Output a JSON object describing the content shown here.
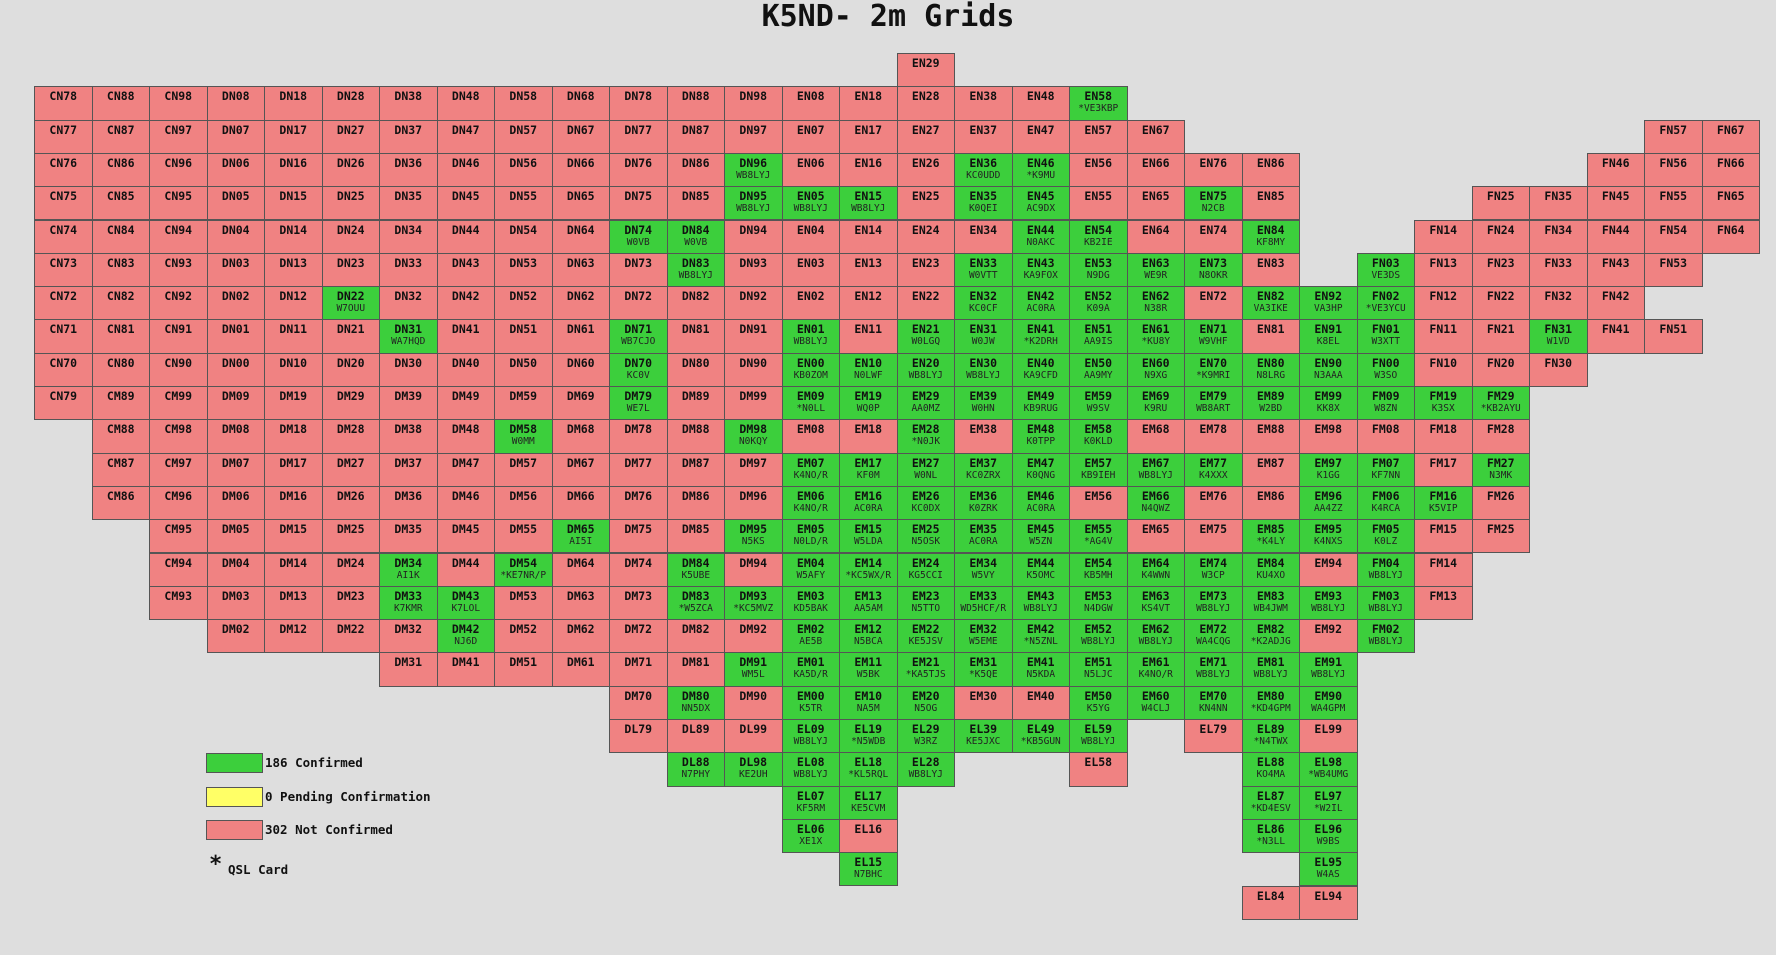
{
  "title": "K5ND- 2m Grids",
  "legend": {
    "items": [
      {
        "color": "#3ccf3c",
        "label": "186 Confirmed"
      },
      {
        "color": "#ffff66",
        "label": "0 Pending Confirmation"
      },
      {
        "color": "#f08282",
        "label": "302 Not Confirmed"
      }
    ],
    "qsl_note": {
      "symbol": "*",
      "label": "QSL Card"
    }
  },
  "rows": [
    [
      "EN29"
    ],
    [
      "CN78",
      "CN88",
      "CN98",
      "DN08",
      "DN18",
      "DN28",
      "DN38",
      "DN48",
      "DN58",
      "DN68",
      "DN78",
      "DN88",
      "DN98",
      "EN08",
      "EN18",
      "EN28",
      "EN38",
      "EN48",
      [
        "EN58",
        "*VE3KBP"
      ]
    ],
    [
      "CN77",
      "CN87",
      "CN97",
      "DN07",
      "DN17",
      "DN27",
      "DN37",
      "DN47",
      "DN57",
      "DN67",
      "DN77",
      "DN87",
      "DN97",
      "EN07",
      "EN17",
      "EN27",
      "EN37",
      "EN47",
      "EN57",
      "EN67",
      "FN57",
      "FN67"
    ],
    [
      "CN76",
      "CN86",
      "CN96",
      "DN06",
      "DN16",
      "DN26",
      "DN36",
      "DN46",
      "DN56",
      "DN66",
      "DN76",
      "DN86",
      [
        "DN96",
        "WB8LYJ"
      ],
      "EN06",
      "EN16",
      "EN26",
      [
        "EN36",
        "KC0UDD"
      ],
      [
        "EN46",
        "*K9MU"
      ],
      "EN56",
      "EN66",
      "EN76",
      "EN86",
      "FN46",
      "FN56",
      "FN66"
    ],
    [
      "CN75",
      "CN85",
      "CN95",
      "DN05",
      "DN15",
      "DN25",
      "DN35",
      "DN45",
      "DN55",
      "DN65",
      "DN75",
      "DN85",
      [
        "DN95",
        "WB8LYJ"
      ],
      [
        "EN05",
        "WB8LYJ"
      ],
      [
        "EN15",
        "WB8LYJ"
      ],
      "EN25",
      [
        "EN35",
        "K0QEI"
      ],
      [
        "EN45",
        "AC9DX"
      ],
      "EN55",
      "EN65",
      [
        "EN75",
        "N2CB"
      ],
      "EN85",
      "FN25",
      "FN35",
      "FN45",
      "FN55",
      "FN65"
    ],
    [
      "CN74",
      "CN84",
      "CN94",
      "DN04",
      "DN14",
      "DN24",
      "DN34",
      "DN44",
      "DN54",
      "DN64",
      [
        "DN74",
        "W0VB"
      ],
      [
        "DN84",
        "W0VB"
      ],
      "DN94",
      "EN04",
      "EN14",
      "EN24",
      "EN34",
      [
        "EN44",
        "N0AKC"
      ],
      [
        "EN54",
        "KB2IE"
      ],
      "EN64",
      "EN74",
      [
        "EN84",
        "KF8MY"
      ],
      "FN14",
      "FN24",
      "FN34",
      "FN44",
      "FN54",
      "FN64"
    ],
    [
      "CN73",
      "CN83",
      "CN93",
      "DN03",
      "DN13",
      "DN23",
      "DN33",
      "DN43",
      "DN53",
      "DN63",
      "DN73",
      [
        "DN83",
        "WB8LYJ"
      ],
      "DN93",
      "EN03",
      "EN13",
      "EN23",
      [
        "EN33",
        "W0VTT"
      ],
      [
        "EN43",
        "KA9FOX"
      ],
      [
        "EN53",
        "N9DG"
      ],
      [
        "EN63",
        "WE9R"
      ],
      [
        "EN73",
        "N8OKR"
      ],
      "EN83",
      [
        "FN03",
        "VE3DS"
      ],
      "FN13",
      "FN23",
      "FN33",
      "FN43",
      "FN53"
    ],
    [
      "CN72",
      "CN82",
      "CN92",
      "DN02",
      "DN12",
      [
        "DN22",
        "W7OUU"
      ],
      "DN32",
      "DN42",
      "DN52",
      "DN62",
      "DN72",
      "DN82",
      "DN92",
      "EN02",
      "EN12",
      "EN22",
      [
        "EN32",
        "KC0CF"
      ],
      [
        "EN42",
        "AC0RA"
      ],
      [
        "EN52",
        "K09A"
      ],
      [
        "EN62",
        "N38R"
      ],
      "EN72",
      [
        "EN82",
        "VA3IKE"
      ],
      [
        "EN92",
        "VA3HP"
      ],
      [
        "FN02",
        "*VE3YCU"
      ],
      "FN12",
      "FN22",
      "FN32",
      "FN42"
    ],
    [
      "CN71",
      "CN81",
      "CN91",
      "DN01",
      "DN11",
      "DN21",
      [
        "DN31",
        "WA7HQD"
      ],
      "DN41",
      "DN51",
      "DN61",
      [
        "DN71",
        "WB7CJO"
      ],
      "DN81",
      "DN91",
      [
        "EN01",
        "WB8LYJ"
      ],
      "EN11",
      [
        "EN21",
        "W0LGQ"
      ],
      [
        "EN31",
        "W0JW"
      ],
      [
        "EN41",
        "*K2DRH"
      ],
      [
        "EN51",
        "AA9IS"
      ],
      [
        "EN61",
        "*KU8Y"
      ],
      [
        "EN71",
        "W9VHF"
      ],
      "EN81",
      [
        "EN91",
        "K8EL"
      ],
      [
        "FN01",
        "W3XTT"
      ],
      "FN11",
      "FN21",
      [
        "FN31",
        "W1VD"
      ],
      "FN41",
      "FN51"
    ],
    [
      "CN70",
      "CN80",
      "CN90",
      "DN00",
      "DN10",
      "DN20",
      "DN30",
      "DN40",
      "DN50",
      "DN60",
      [
        "DN70",
        "KC0V"
      ],
      "DN80",
      "DN90",
      [
        "EN00",
        "KB0ZOM"
      ],
      [
        "EN10",
        "N0LWF"
      ],
      [
        "EN20",
        "WB8LYJ"
      ],
      [
        "EN30",
        "WB8LYJ"
      ],
      [
        "EN40",
        "KA9CFD"
      ],
      [
        "EN50",
        "AA9MY"
      ],
      [
        "EN60",
        "N9XG"
      ],
      [
        "EN70",
        "*K9MRI"
      ],
      [
        "EN80",
        "N8LRG"
      ],
      [
        "EN90",
        "N3AAA"
      ],
      [
        "FN00",
        "W3SO"
      ],
      "FN10",
      "FN20",
      "FN30"
    ],
    [
      "CN79",
      "CM89",
      "CM99",
      "DM09",
      "DM19",
      "DM29",
      "DM39",
      "DM49",
      "DM59",
      "DM69",
      [
        "DM79",
        "WE7L"
      ],
      "DM89",
      "DM99",
      [
        "EM09",
        "*N0LL"
      ],
      [
        "EM19",
        "WQ0P"
      ],
      [
        "EM29",
        "AA0MZ"
      ],
      [
        "EM39",
        "W0HN"
      ],
      [
        "EM49",
        "KB9RUG"
      ],
      [
        "EM59",
        "W9SV"
      ],
      [
        "EM69",
        "K9RU"
      ],
      [
        "EM79",
        "WB8ART"
      ],
      [
        "EM89",
        "W2BD"
      ],
      [
        "EM99",
        "KK8X"
      ],
      [
        "FM09",
        "W8ZN"
      ],
      [
        "FM19",
        "K3SX"
      ],
      [
        "FM29",
        "*KB2AYU"
      ]
    ],
    [
      "CM88",
      "CM98",
      "DM08",
      "DM18",
      "DM28",
      "DM38",
      "DM48",
      [
        "DM58",
        "W0MM"
      ],
      "DM68",
      "DM78",
      "DM88",
      [
        "DM98",
        "N0KQY"
      ],
      "EM08",
      "EM18",
      [
        "EM28",
        "*N0JK"
      ],
      "EM38",
      [
        "EM48",
        "K0TPP"
      ],
      [
        "EM58",
        "K0KLD"
      ],
      "EM68",
      "EM78",
      "EM88",
      "EM98",
      "FM08",
      "FM18",
      "FM28"
    ],
    [
      "CM87",
      "CM97",
      "DM07",
      "DM17",
      "DM27",
      "DM37",
      "DM47",
      "DM57",
      "DM67",
      "DM77",
      "DM87",
      "DM97",
      [
        "EM07",
        "K4NO/R"
      ],
      [
        "EM17",
        "KF0M"
      ],
      [
        "EM27",
        "W0NL"
      ],
      [
        "EM37",
        "KC0ZRX"
      ],
      [
        "EM47",
        "K0QNG"
      ],
      [
        "EM57",
        "KB9IEH"
      ],
      [
        "EM67",
        "WB8LYJ"
      ],
      [
        "EM77",
        "K4XXX"
      ],
      "EM87",
      [
        "EM97",
        "K1GG"
      ],
      [
        "FM07",
        "KF7NN"
      ],
      "FM17",
      [
        "FM27",
        "N3MK"
      ]
    ],
    [
      "CM86",
      "CM96",
      "DM06",
      "DM16",
      "DM26",
      "DM36",
      "DM46",
      "DM56",
      "DM66",
      "DM76",
      "DM86",
      "DM96",
      [
        "EM06",
        "K4NO/R"
      ],
      [
        "EM16",
        "AC0RA"
      ],
      [
        "EM26",
        "KC0DX"
      ],
      [
        "EM36",
        "K0ZRK"
      ],
      [
        "EM46",
        "AC0RA"
      ],
      "EM56",
      [
        "EM66",
        "N4QWZ"
      ],
      "EM76",
      "EM86",
      [
        "EM96",
        "AA4ZZ"
      ],
      [
        "FM06",
        "K4RCA"
      ],
      [
        "FM16",
        "K5VIP"
      ],
      "FM26"
    ],
    [
      "CM95",
      "DM05",
      "DM15",
      "DM25",
      "DM35",
      "DM45",
      "DM55",
      [
        "DM65",
        "AI5I"
      ],
      "DM75",
      "DM85",
      [
        "DM95",
        "N5KS"
      ],
      [
        "EM05",
        "N0LD/R"
      ],
      [
        "EM15",
        "W5LDA"
      ],
      [
        "EM25",
        "N5OSK"
      ],
      [
        "EM35",
        "AC0RA"
      ],
      [
        "EM45",
        "W5ZN"
      ],
      [
        "EM55",
        "*AG4V"
      ],
      "EM65",
      "EM75",
      [
        "EM85",
        "*K4LY"
      ],
      [
        "EM95",
        "K4NXS"
      ],
      [
        "FM05",
        "K0LZ"
      ],
      "FM15",
      "FM25"
    ],
    [
      "CM94",
      "DM04",
      "DM14",
      "DM24",
      [
        "DM34",
        "AI1K"
      ],
      "DM44",
      [
        "DM54",
        "*KE7NR/P"
      ],
      "DM64",
      "DM74",
      [
        "DM84",
        "K5UBE"
      ],
      "DM94",
      [
        "EM04",
        "W5AFY"
      ],
      [
        "EM14",
        "*KC5WX/R"
      ],
      [
        "EM24",
        "KG5CCI"
      ],
      [
        "EM34",
        "W5VY"
      ],
      [
        "EM44",
        "K5OMC"
      ],
      [
        "EM54",
        "KB5MH"
      ],
      [
        "EM64",
        "K4WWN"
      ],
      [
        "EM74",
        "W3CP"
      ],
      [
        "EM84",
        "KU4XO"
      ],
      "EM94",
      [
        "FM04",
        "WB8LYJ"
      ],
      "FM14"
    ],
    [
      "CM93",
      "DM03",
      "DM13",
      "DM23",
      [
        "DM33",
        "K7KMR"
      ],
      [
        "DM43",
        "K7LOL"
      ],
      "DM53",
      "DM63",
      "DM73",
      [
        "DM83",
        "*W5ZCA"
      ],
      [
        "DM93",
        "*KC5MVZ"
      ],
      [
        "EM03",
        "KD5BAK"
      ],
      [
        "EM13",
        "AA5AM"
      ],
      [
        "EM23",
        "N5TTO"
      ],
      [
        "EM33",
        "WD5HCF/R"
      ],
      [
        "EM43",
        "WB8LYJ"
      ],
      [
        "EM53",
        "N4DGW"
      ],
      [
        "EM63",
        "KS4VT"
      ],
      [
        "EM73",
        "WB8LYJ"
      ],
      [
        "EM83",
        "WB4JWM"
      ],
      [
        "EM93",
        "WB8LYJ"
      ],
      [
        "FM03",
        "WB8LYJ"
      ],
      "FM13"
    ],
    [
      "DM02",
      "DM12",
      "DM22",
      "DM32",
      [
        "DM42",
        "NJ6D"
      ],
      "DM52",
      "DM62",
      "DM72",
      "DM82",
      "DM92",
      [
        "EM02",
        "AE5B"
      ],
      [
        "EM12",
        "N5BCA"
      ],
      [
        "EM22",
        "KE5JSV"
      ],
      [
        "EM32",
        "W5EME"
      ],
      [
        "EM42",
        "*N5ZNL"
      ],
      [
        "EM52",
        "WB8LYJ"
      ],
      [
        "EM62",
        "WB8LYJ"
      ],
      [
        "EM72",
        "WA4CQG"
      ],
      [
        "EM82",
        "*K2ADJG"
      ],
      "EM92",
      [
        "FM02",
        "WB8LYJ"
      ]
    ],
    [
      "DM31",
      "DM41",
      "DM51",
      "DM61",
      "DM71",
      "DM81",
      [
        "DM91",
        "WM5L"
      ],
      [
        "EM01",
        "KA5D/R"
      ],
      [
        "EM11",
        "W5BK"
      ],
      [
        "EM21",
        "*KA5TJS"
      ],
      [
        "EM31",
        "*K5QE"
      ],
      [
        "EM41",
        "N5KDA"
      ],
      [
        "EM51",
        "N5LJC"
      ],
      [
        "EM61",
        "K4NO/R"
      ],
      [
        "EM71",
        "WB8LYJ"
      ],
      [
        "EM81",
        "WB8LYJ"
      ],
      [
        "EM91",
        "WB8LYJ"
      ]
    ],
    [
      "DM70",
      [
        "DM80",
        "NN5DX"
      ],
      "DM90",
      [
        "EM00",
        "K5TR"
      ],
      [
        "EM10",
        "NA5M"
      ],
      [
        "EM20",
        "N5OG"
      ],
      "EM30",
      "EM40",
      [
        "EM50",
        "K5YG"
      ],
      [
        "EM60",
        "W4CLJ"
      ],
      [
        "EM70",
        "KN4NN"
      ],
      [
        "EM80",
        "*KD4GPM"
      ],
      [
        "EM90",
        "WA4GPM"
      ]
    ],
    [
      "DL79",
      "DL89",
      "DL99",
      [
        "EL09",
        "WB8LYJ"
      ],
      [
        "EL19",
        "*N5WDB"
      ],
      [
        "EL29",
        "W3RZ"
      ],
      [
        "EL39",
        "KE5JXC"
      ],
      [
        "EL49",
        "*KB5GUN"
      ],
      [
        "EL59",
        "WB8LYJ"
      ],
      "EL79",
      [
        "EL89",
        "*N4TWX"
      ],
      "EL99"
    ],
    [
      [
        "DL88",
        "N7PHY"
      ],
      [
        "DL98",
        "KE2UH"
      ],
      [
        "EL08",
        "WB8LYJ"
      ],
      [
        "EL18",
        "*KL5RQL"
      ],
      [
        "EL28",
        "WB8LYJ"
      ],
      "EL58",
      [
        "EL88",
        "KO4MA"
      ],
      [
        "EL98",
        "*WB4UMG"
      ]
    ],
    [
      [
        "EL07",
        "KF5RM"
      ],
      [
        "EL17",
        "KE5CVM"
      ],
      [
        "EL87",
        "*KD4ESV"
      ],
      [
        "EL97",
        "*W2IL"
      ]
    ],
    [
      [
        "EL06",
        "XE1X"
      ],
      "EL16",
      [
        "EL86",
        "*N3LL"
      ],
      [
        "EL96",
        "W9BS"
      ]
    ],
    [
      [
        "EL15",
        "N7BHC"
      ],
      [
        "EL95",
        "W4AS"
      ]
    ],
    [
      "EL84",
      "EL94"
    ]
  ]
}
